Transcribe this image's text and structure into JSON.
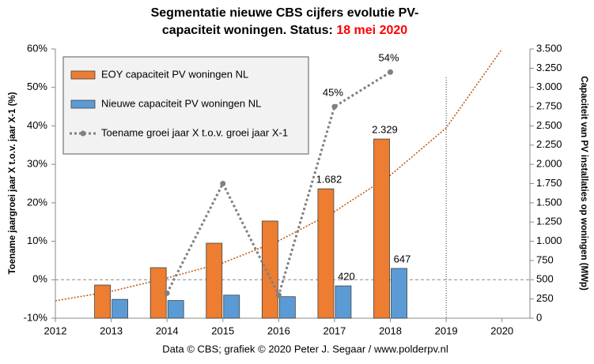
{
  "chart_data": {
    "type": "bar",
    "title": [
      "Segmentatie nieuwe CBS cijfers evolutie PV-",
      "capaciteit woningen. Status:"
    ],
    "status": "18 mei 2020",
    "status_color": "#ff0000",
    "y_label": "Toename jaargroei jaar X t.o.v. jaar X-1 (%)",
    "y2_label": "Capaciteit van PV installaties op woningen (MWp)",
    "footer": "Data © CBS; grafiek © 2020 Peter J. Segaar / www.polderpv.nl",
    "x": [
      2013,
      2014,
      2015,
      2016,
      2017,
      2018
    ],
    "xlim": [
      2012,
      2020.5
    ],
    "xticks": [
      2012,
      2013,
      2014,
      2015,
      2016,
      2017,
      2018,
      2019,
      2020
    ],
    "ylim": [
      -10,
      60
    ],
    "yticks": [
      {
        "value": -10,
        "label": "-10%"
      },
      {
        "value": 0,
        "label": "0%"
      },
      {
        "value": 10,
        "label": "10%"
      },
      {
        "value": 20,
        "label": "20%"
      },
      {
        "value": 30,
        "label": "30%"
      },
      {
        "value": 40,
        "label": "40%"
      },
      {
        "value": 50,
        "label": "50%"
      },
      {
        "value": 60,
        "label": "60%"
      }
    ],
    "y2lim": [
      0,
      3500
    ],
    "y2ticks": [
      0,
      250,
      500,
      750,
      {
        "value": 1000,
        "label": "1.000"
      },
      {
        "value": 1250,
        "label": "1.250"
      },
      {
        "value": 1500,
        "label": "1.500"
      },
      {
        "value": 1750,
        "label": "1.750"
      },
      {
        "value": 2000,
        "label": "2.000"
      },
      {
        "value": 2250,
        "label": "2.250"
      },
      {
        "value": 2500,
        "label": "2.500"
      },
      {
        "value": 2750,
        "label": "2.750"
      },
      {
        "value": 3000,
        "label": "3.000"
      },
      {
        "value": 3250,
        "label": "3.250"
      },
      {
        "value": 3500,
        "label": "3.500"
      }
    ],
    "grid": false,
    "zero_line_y": 0,
    "marker_line_x": 2019,
    "legend": "top-left",
    "series": [
      {
        "name": "EOY capaciteit PV woningen NL",
        "type": "bar",
        "axis": "y2",
        "color": "#ed7d31",
        "values": [
          431,
          657,
          975,
          1263,
          1682,
          2329
        ],
        "value_labels": [
          null,
          null,
          null,
          null,
          "1.682",
          "2.329"
        ]
      },
      {
        "name": "Nieuwe capaciteit PV woningen NL",
        "type": "bar",
        "axis": "y2",
        "color": "#5b9bd5",
        "values": [
          245,
          230,
          300,
          280,
          420,
          647
        ],
        "value_labels": [
          null,
          null,
          null,
          null,
          "420",
          "647"
        ]
      },
      {
        "name": "Toename groei jaar X t.o.v. groei jaar X-1",
        "type": "line",
        "axis": "y",
        "color": "#808080",
        "values": [
          null,
          -3.5,
          25,
          -4,
          45,
          54
        ],
        "value_labels": [
          null,
          null,
          null,
          null,
          "45%",
          "54%"
        ]
      }
    ],
    "trendline": {
      "axis": "y2",
      "color": "#c55a11",
      "x": [
        2012,
        2013,
        2014,
        2015,
        2016,
        2017,
        2018,
        2019,
        2020
      ],
      "values": [
        226,
        349,
        523,
        719,
        1006,
        1386,
        1858,
        2474,
        3500
      ]
    }
  }
}
